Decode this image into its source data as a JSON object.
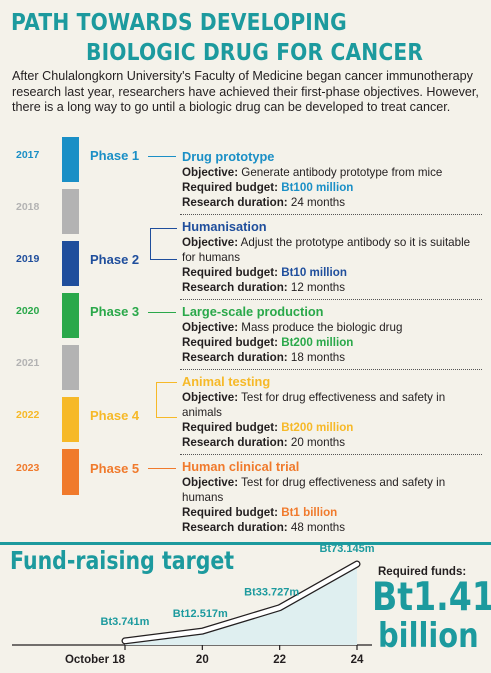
{
  "header": {
    "title_line1": "PATH TOWARDS DEVELOPING",
    "title_line2": "BIOLOGIC DRUG FOR CANCER",
    "intro": "After Chulalongkorn University's Faculty of Medicine began cancer immunotherapy research last year, researchers have achieved their first-phase objectives. However, there is a long way to go until a biologic drug can be developed to treat cancer."
  },
  "labels": {
    "objective": "Objective:",
    "budget": "Required budget:",
    "duration": "Research duration:"
  },
  "years": [
    {
      "year": "2017",
      "color": "#1a8fc6"
    },
    {
      "year": "2018",
      "color": "#b3b3b3"
    },
    {
      "year": "2019",
      "color": "#1f4e9c"
    },
    {
      "year": "2020",
      "color": "#2aa84a"
    },
    {
      "year": "2021",
      "color": "#b3b3b3"
    },
    {
      "year": "2022",
      "color": "#f6b928"
    },
    {
      "year": "2023",
      "color": "#f07a2c"
    }
  ],
  "phases": [
    {
      "label": "Phase 1",
      "title": "Drug prototype",
      "color": "#1a8fc6",
      "objective": "Generate antibody prototype from mice",
      "budget": "Bt100 million",
      "duration": "24 months"
    },
    {
      "label": "Phase 2",
      "title": "Humanisation",
      "color": "#1f4e9c",
      "objective": "Adjust the prototype antibody so it is suitable for humans",
      "budget": "Bt10 million",
      "duration": "12 months"
    },
    {
      "label": "Phase 3",
      "title": "Large-scale production",
      "color": "#2aa84a",
      "objective": "Mass produce the biologic drug",
      "budget": "Bt200 million",
      "duration": "18 months"
    },
    {
      "label": "Phase 4",
      "title": "Animal testing",
      "color": "#f6b928",
      "objective": "Test for drug effectiveness and safety in animals",
      "budget": "Bt200 million",
      "duration": "20 months"
    },
    {
      "label": "Phase 5",
      "title": "Human clinical trial",
      "color": "#f07a2c",
      "objective": "Test for drug effectiveness and safety in humans",
      "budget": "Bt1 billion",
      "duration": "48 months"
    }
  ],
  "fund": {
    "title": "Fund-raising target",
    "required_label": "Required funds:",
    "required_amount": "Bt1.41",
    "required_unit": "billion"
  },
  "chart_data": {
    "type": "area",
    "title": "Fund-raising target",
    "x": [
      18,
      20,
      22,
      24
    ],
    "x_tick_labels": [
      "October 18",
      "20",
      "22",
      "24"
    ],
    "values": [
      3.741,
      12.517,
      33.727,
      73.145
    ],
    "point_labels": [
      "Bt3.741m",
      "Bt12.517m",
      "Bt33.727m",
      "Bt73.145m"
    ],
    "ylim": [
      0,
      75
    ],
    "line_color": "#1c9a9e",
    "grid": false
  }
}
